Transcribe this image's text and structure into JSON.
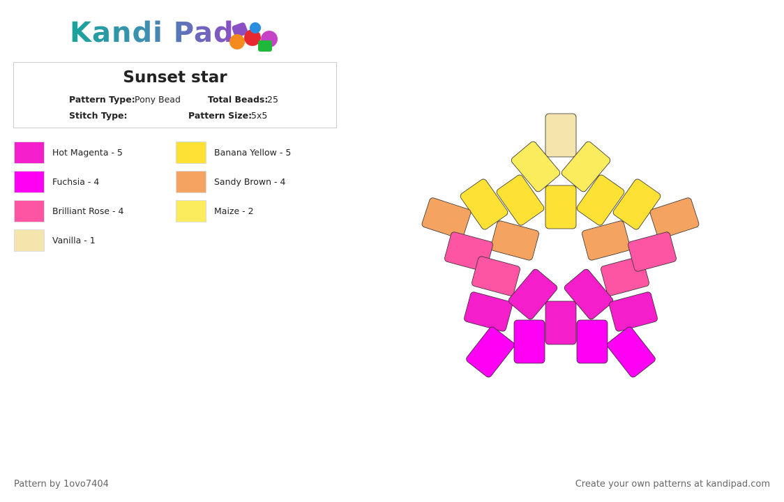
{
  "header": {
    "logo": "Kandi Pad"
  },
  "pattern": {
    "title": "Sunset star",
    "fields": [
      {
        "label": "Pattern Type:",
        "value": "Pony Bead"
      },
      {
        "label": "Total Beads:",
        "value": "25"
      },
      {
        "label": "Stitch Type:"
      },
      {
        "label": "Pattern Size:",
        "value": "5x5"
      }
    ]
  },
  "legend": [
    {
      "label": "Hot Magenta - 5",
      "color": "#f51ecb"
    },
    {
      "label": "Banana Yellow - 5",
      "color": "#fde135"
    },
    {
      "label": "Fuchsia - 4",
      "color": "#ff00f5"
    },
    {
      "label": "Sandy Brown - 4",
      "color": "#f4a460"
    },
    {
      "label": "Brilliant Rose - 4",
      "color": "#fd55a3"
    },
    {
      "label": "Maize - 2",
      "color": "#fbec5d"
    },
    {
      "label": "Vanilla - 1",
      "color": "#f3e5ab"
    }
  ],
  "footer": {
    "author": "Pattern by 1ovo7404",
    "cta": "Create your own patterns at kandipad.com"
  }
}
